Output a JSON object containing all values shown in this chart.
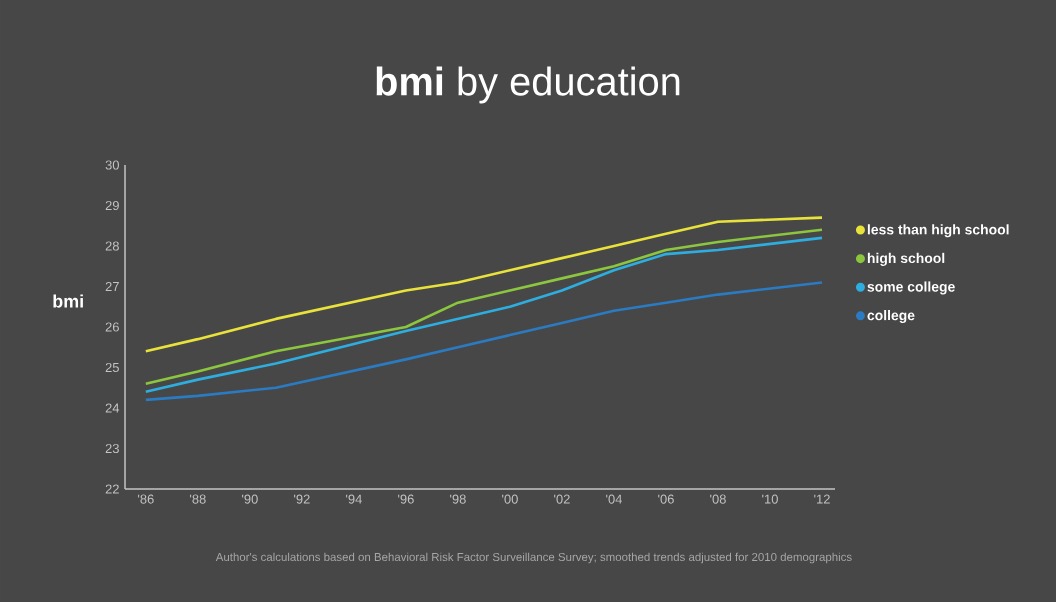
{
  "chart_data": {
    "type": "line",
    "title": "**bmi** by education",
    "ylabel": "bmi",
    "annotations": [
      "Author's calculations based on Behavioral Risk Factor Surveillance Survey; smoothed trends adjusted for 2010 demographics"
    ],
    "x": [
      1986,
      1988,
      1991,
      1996,
      1998,
      2000,
      2002,
      2004,
      2006,
      2008,
      2012
    ],
    "series": [
      {
        "name": "less than high school",
        "color": "#e8e23a",
        "values": [
          25.4,
          25.7,
          26.2,
          26.9,
          27.1,
          27.4,
          27.7,
          28.0,
          28.3,
          28.6,
          28.7
        ]
      },
      {
        "name": "high school",
        "color": "#8cc63f",
        "values": [
          24.6,
          24.9,
          25.4,
          26.0,
          26.6,
          26.9,
          27.2,
          27.5,
          27.9,
          28.1,
          28.4
        ]
      },
      {
        "name": "some college",
        "color": "#2eaee0",
        "values": [
          24.4,
          24.7,
          25.1,
          25.9,
          26.2,
          26.5,
          26.9,
          27.4,
          27.8,
          27.9,
          28.2
        ]
      },
      {
        "name": "college",
        "color": "#2b7bc2",
        "values": [
          24.2,
          24.3,
          24.5,
          25.2,
          25.5,
          25.8,
          26.1,
          26.4,
          26.6,
          26.8,
          27.1
        ]
      }
    ],
    "xlim": [
      1985.2,
      2012.5
    ],
    "ylim": [
      22,
      30
    ],
    "xticks": [
      {
        "value": 1986,
        "label": "'86"
      },
      {
        "value": 1988,
        "label": "'88"
      },
      {
        "value": 1990,
        "label": "'90"
      },
      {
        "value": 1992,
        "label": "'92"
      },
      {
        "value": 1994,
        "label": "'94"
      },
      {
        "value": 1996,
        "label": "'96"
      },
      {
        "value": 1998,
        "label": "'98"
      },
      {
        "value": 2000,
        "label": "'00"
      },
      {
        "value": 2002,
        "label": "'02"
      },
      {
        "value": 2004,
        "label": "'04"
      },
      {
        "value": 2006,
        "label": "'06"
      },
      {
        "value": 2008,
        "label": "'08"
      },
      {
        "value": 2010,
        "label": "'10"
      },
      {
        "value": 2012,
        "label": "'12"
      }
    ],
    "yticks": [
      22,
      23,
      24,
      25,
      26,
      27,
      28,
      29,
      30
    ],
    "grid": false,
    "legend": "right",
    "marker": "none",
    "line_style": "solid"
  }
}
